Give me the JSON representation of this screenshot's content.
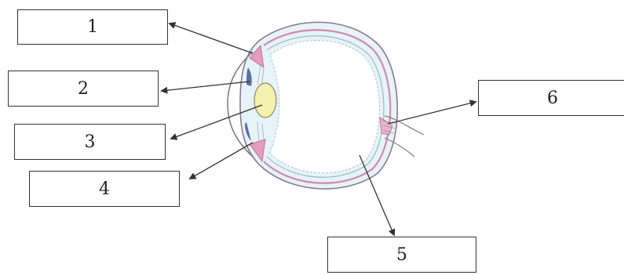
{
  "diagram": {
    "labels": {
      "l1": "1",
      "l2": "2",
      "l3": "3",
      "l4": "4",
      "l5": "5",
      "l6": "6"
    }
  },
  "colors": {
    "outline": "#8a7a8a",
    "sclera_inner": "#c9a3b8",
    "choroid": "#d08aa8",
    "retina_fill": "#ffffff",
    "lens": "#f4f0b0",
    "iris": "#5b6fa8",
    "ciliary": "#e79ac2",
    "vitreous_tint": "#e6f3f8",
    "arrow": "#333333"
  }
}
